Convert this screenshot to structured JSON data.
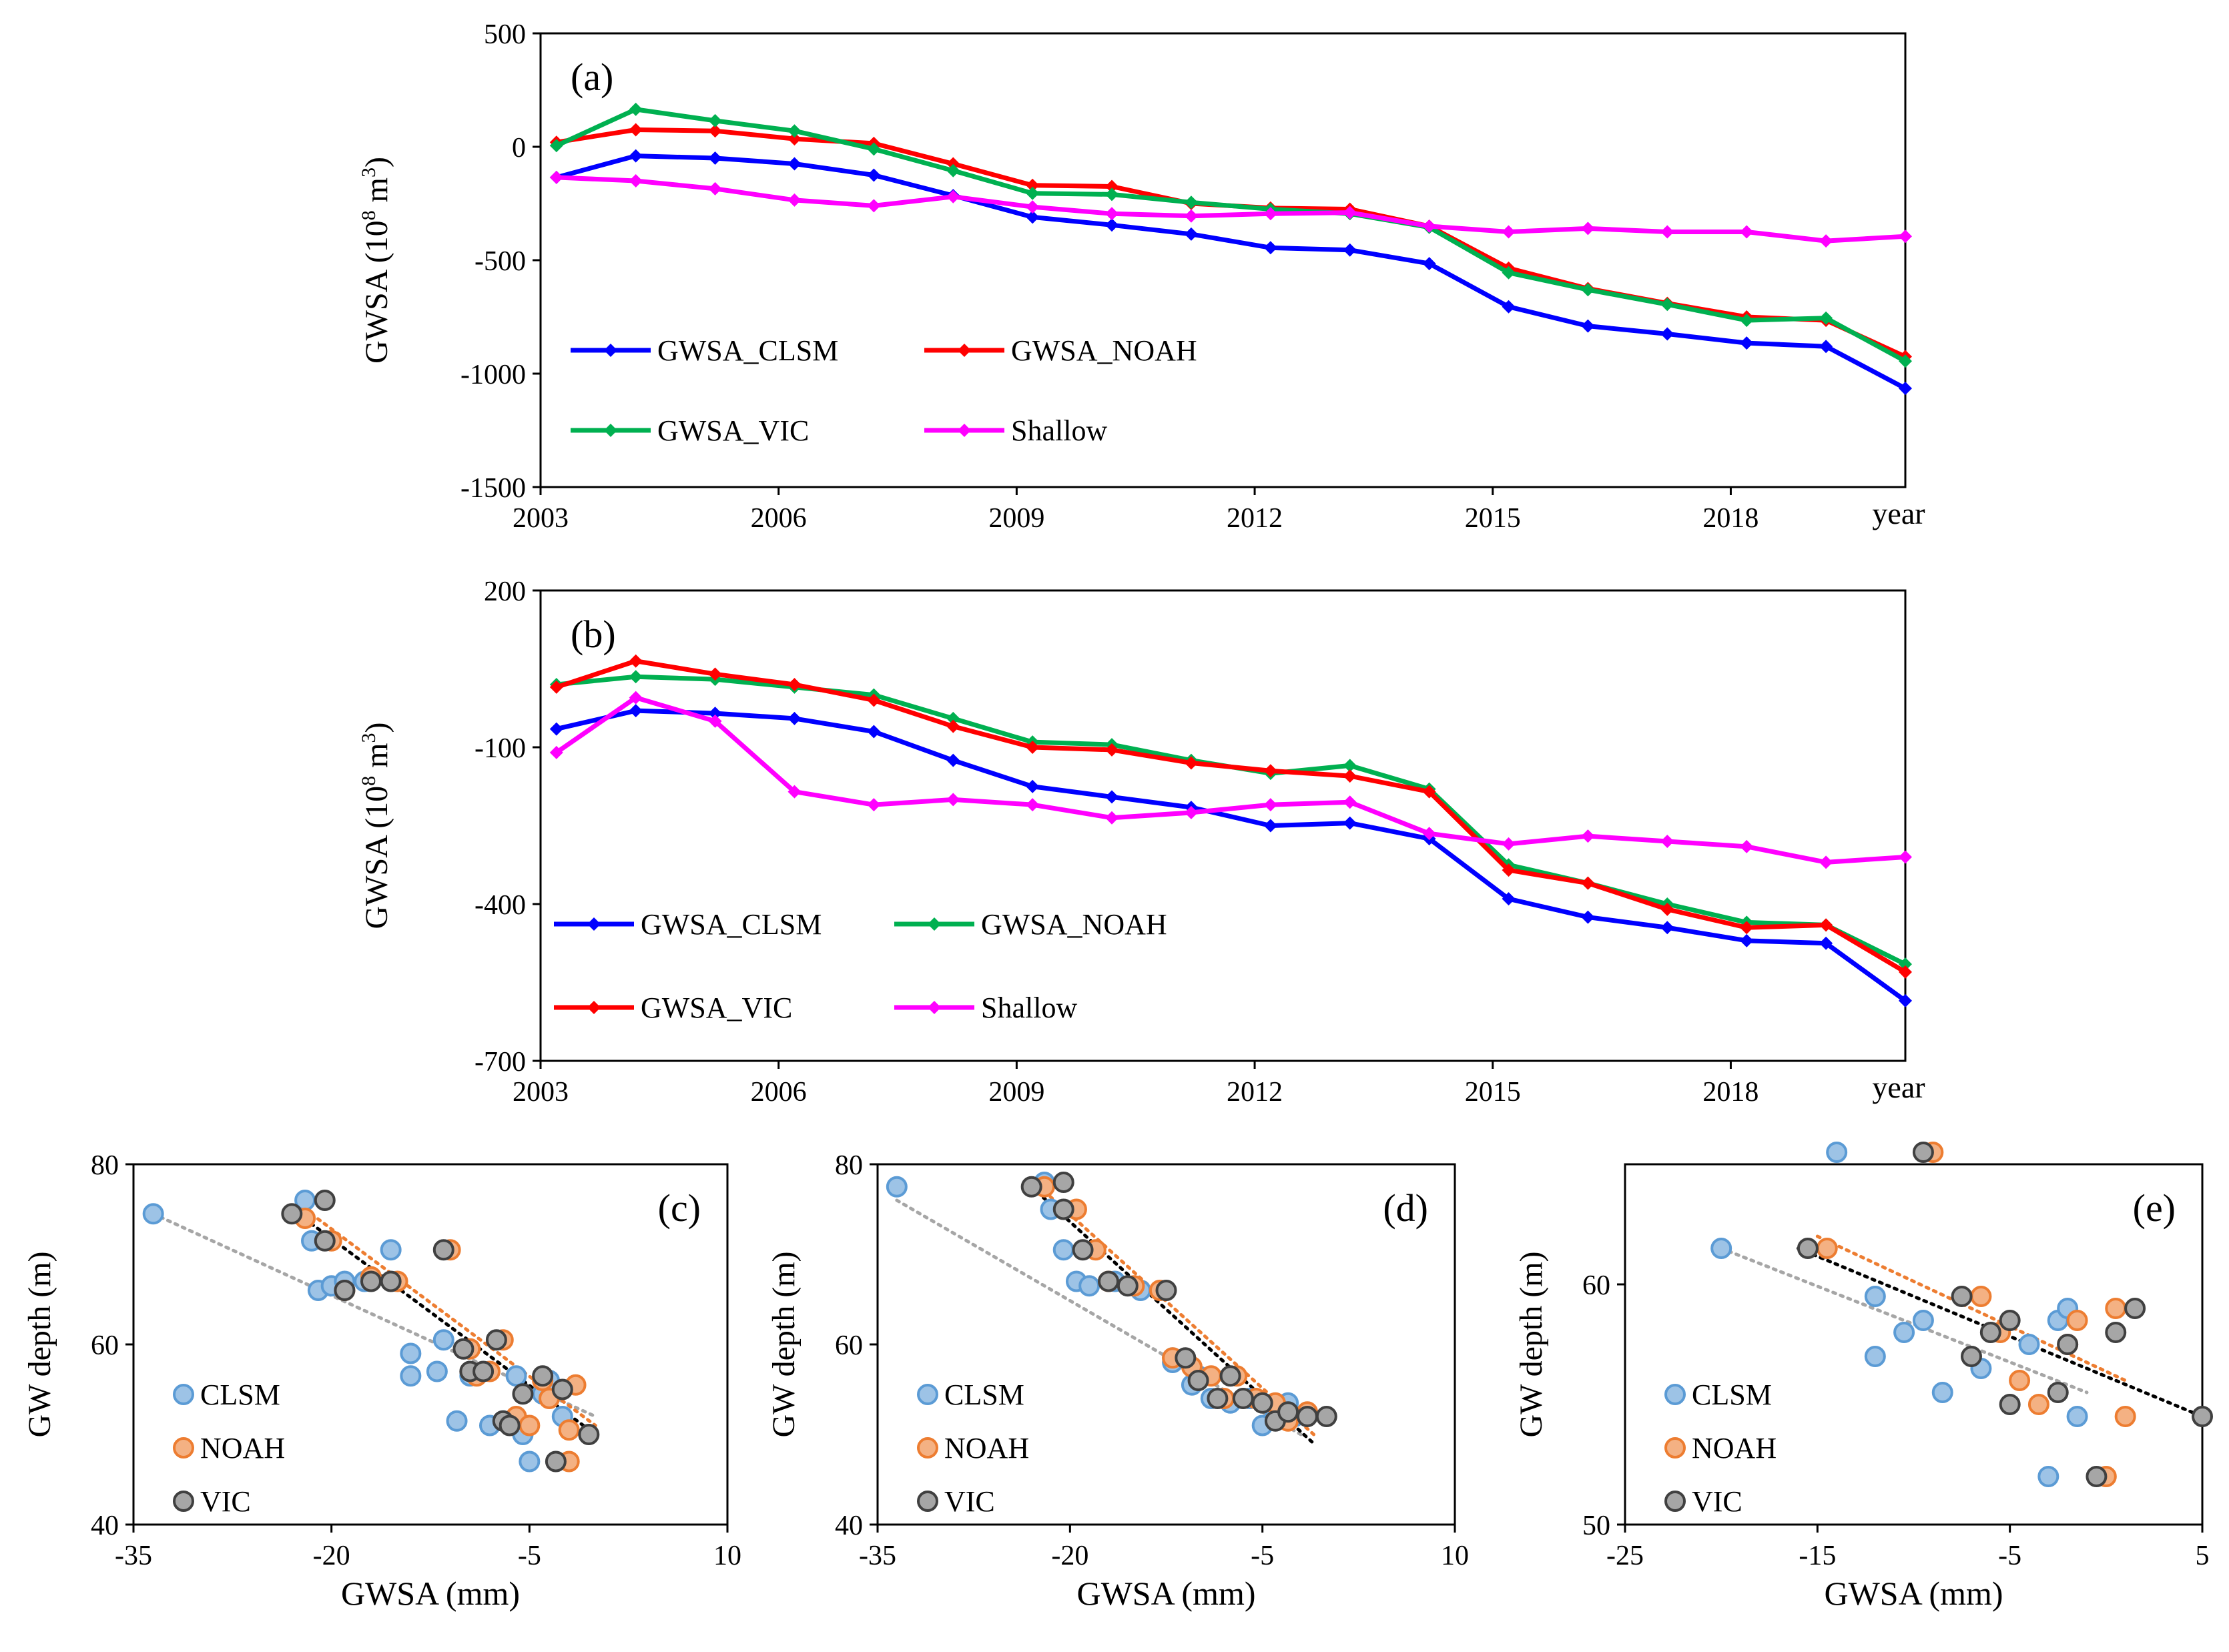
{
  "chart_data": [
    {
      "id": "a",
      "type": "line",
      "panel_label": "(a)",
      "ylabel": "GWSA (10",
      "ylabel_sup": "8",
      "ylabel_unit": " m",
      "ylabel_sup2": "3",
      "ylabel_end": ")",
      "xlabel": "year",
      "ylim": [
        -1500,
        500
      ],
      "yticks": [
        "500",
        "0",
        "-500",
        "-1000",
        "-1500"
      ],
      "xlim": [
        2003,
        2020.2
      ],
      "xticks": [
        "2003",
        "2006",
        "2009",
        "2012",
        "2015",
        "2018"
      ],
      "x": [
        2003.2,
        2004.2,
        2005.2,
        2006.2,
        2007.2,
        2008.2,
        2009.2,
        2010.2,
        2011.2,
        2012.2,
        2013.2,
        2014.2,
        2015.2,
        2016.2,
        2017.2,
        2018.2,
        2019.2,
        2020.2
      ],
      "series": [
        {
          "name": "GWSA_CLSM",
          "color": "#0000ff",
          "values": [
            -135,
            -40,
            -50,
            -75,
            -125,
            -215,
            -310,
            -345,
            -385,
            -445,
            -455,
            -515,
            -705,
            -790,
            -825,
            -865,
            -880,
            -1065
          ]
        },
        {
          "name": "GWSA_NOAH",
          "color": "#ff0000",
          "values": [
            20,
            75,
            70,
            35,
            15,
            -75,
            -170,
            -175,
            -250,
            -270,
            -275,
            -350,
            -535,
            -625,
            -690,
            -750,
            -765,
            -925
          ]
        },
        {
          "name": "GWSA_VIC",
          "color": "#00b050",
          "values": [
            5,
            165,
            115,
            70,
            -10,
            -105,
            -205,
            -210,
            -245,
            -275,
            -295,
            -355,
            -555,
            -630,
            -695,
            -765,
            -755,
            -945
          ]
        },
        {
          "name": "Shallow",
          "color": "#ff00ff",
          "values": [
            -135,
            -150,
            -185,
            -235,
            -260,
            -220,
            -265,
            -295,
            -305,
            -295,
            -290,
            -350,
            -375,
            -360,
            -375,
            -375,
            -415,
            -395
          ]
        }
      ],
      "legend": [
        "GWSA_CLSM",
        "GWSA_NOAH",
        "GWSA_VIC",
        "Shallow"
      ]
    },
    {
      "id": "b",
      "type": "line",
      "panel_label": "(b)",
      "ylabel": "GWSA (10",
      "ylabel_sup": "8",
      "ylabel_unit": " m",
      "ylabel_sup2": "3",
      "ylabel_end": ")",
      "xlabel": "year",
      "ylim": [
        -700,
        200
      ],
      "yticks": [
        "200",
        "-100",
        "-400",
        "-700"
      ],
      "xlim": [
        2003,
        2020.2
      ],
      "xticks": [
        "2003",
        "2006",
        "2009",
        "2012",
        "2015",
        "2018"
      ],
      "x": [
        2003.2,
        2004.2,
        2005.2,
        2006.2,
        2007.2,
        2008.2,
        2009.2,
        2010.2,
        2011.2,
        2012.2,
        2013.2,
        2014.2,
        2015.2,
        2016.2,
        2017.2,
        2018.2,
        2019.2,
        2020.2
      ],
      "series": [
        {
          "name": "GWSA_CLSM",
          "color": "#0000ff",
          "values": [
            -65,
            -30,
            -35,
            -45,
            -70,
            -125,
            -175,
            -195,
            -215,
            -250,
            -245,
            -275,
            -390,
            -425,
            -445,
            -470,
            -475,
            -585
          ]
        },
        {
          "name": "GWSA_NOAH",
          "color": "#00b050",
          "values": [
            20,
            35,
            30,
            15,
            0,
            -45,
            -90,
            -95,
            -125,
            -150,
            -135,
            -180,
            -325,
            -360,
            -400,
            -435,
            -440,
            -515
          ]
        },
        {
          "name": "GWSA_VIC",
          "color": "#ff0000",
          "values": [
            15,
            65,
            40,
            20,
            -10,
            -60,
            -100,
            -105,
            -130,
            -145,
            -155,
            -185,
            -335,
            -360,
            -410,
            -445,
            -440,
            -530
          ]
        },
        {
          "name": "Shallow",
          "color": "#ff00ff",
          "values": [
            -110,
            -5,
            -50,
            -185,
            -210,
            -200,
            -210,
            -235,
            -225,
            -210,
            -205,
            -265,
            -285,
            -270,
            -280,
            -290,
            -320,
            -310
          ]
        }
      ],
      "legend": [
        "GWSA_CLSM",
        "GWSA_NOAH",
        "GWSA_VIC",
        "Shallow"
      ]
    },
    {
      "id": "c",
      "type": "scatter",
      "panel_label": "(c)",
      "ylabel": "GW depth (m)",
      "xlabel": "GWSA (mm)",
      "ylim": [
        40,
        80
      ],
      "yticks": [
        "80",
        "60",
        "40"
      ],
      "xlim": [
        -35,
        10
      ],
      "xticks": [
        "-35",
        "-20",
        "-5",
        "10"
      ],
      "series": [
        {
          "name": "CLSM",
          "color": "#9dc3e6",
          "edge": "#5b9bd5",
          "points": [
            [
              -33.5,
              74.5
            ],
            [
              -22,
              76
            ],
            [
              -21.5,
              71.5
            ],
            [
              -21,
              66
            ],
            [
              -20,
              66.5
            ],
            [
              -19,
              67
            ],
            [
              -17.5,
              67
            ],
            [
              -15.5,
              70.5
            ],
            [
              -14,
              59
            ],
            [
              -14,
              56.5
            ],
            [
              -12,
              57
            ],
            [
              -11.5,
              60.5
            ],
            [
              -10.5,
              51.5
            ],
            [
              -9.5,
              56.5
            ],
            [
              -8,
              51
            ],
            [
              -7,
              51.5
            ],
            [
              -6,
              56.5
            ],
            [
              -5.5,
              50
            ],
            [
              -5,
              47
            ],
            [
              -4,
              54.5
            ],
            [
              -3.5,
              56
            ],
            [
              -2.5,
              52
            ]
          ]
        },
        {
          "name": "NOAH",
          "color": "#f4b183",
          "edge": "#ed7d31",
          "points": [
            [
              -22,
              74
            ],
            [
              -20,
              71.5
            ],
            [
              -19,
              66
            ],
            [
              -17,
              67.5
            ],
            [
              -15,
              67
            ],
            [
              -11,
              70.5
            ],
            [
              -9.5,
              59.5
            ],
            [
              -9,
              56.5
            ],
            [
              -8,
              57
            ],
            [
              -7,
              60.5
            ],
            [
              -6,
              52
            ],
            [
              -5,
              51
            ],
            [
              -4,
              56
            ],
            [
              -3.5,
              54
            ],
            [
              -2,
              50.5
            ],
            [
              -2,
              47
            ],
            [
              -1.5,
              55.5
            ]
          ]
        },
        {
          "name": "VIC",
          "color": "#a6a6a6",
          "edge": "#404040",
          "points": [
            [
              -23,
              74.5
            ],
            [
              -20.5,
              76
            ],
            [
              -20.5,
              71.5
            ],
            [
              -19,
              66
            ],
            [
              -17,
              67
            ],
            [
              -15.5,
              67
            ],
            [
              -11.5,
              70.5
            ],
            [
              -10,
              59.5
            ],
            [
              -9.5,
              57
            ],
            [
              -8.5,
              57
            ],
            [
              -7.5,
              60.5
            ],
            [
              -7,
              51.5
            ],
            [
              -6.5,
              51
            ],
            [
              -5.5,
              54.5
            ],
            [
              -4,
              56.5
            ],
            [
              -3,
              47
            ],
            [
              -2.5,
              55
            ],
            [
              -0.5,
              50
            ]
          ]
        }
      ],
      "trendlines": [
        {
          "color": "#a6a6a6",
          "from": [
            -33.5,
            74.5
          ],
          "to": [
            0,
            52
          ]
        },
        {
          "color": "#ed7d31",
          "from": [
            -22,
            75
          ],
          "to": [
            0,
            51
          ]
        },
        {
          "color": "#000000",
          "from": [
            -23,
            75
          ],
          "to": [
            0,
            50
          ]
        }
      ],
      "legend": [
        "CLSM",
        "NOAH",
        "VIC"
      ]
    },
    {
      "id": "d",
      "type": "scatter",
      "panel_label": "(d)",
      "ylabel": "GW depth (m)",
      "xlabel": "GWSA (mm)",
      "ylim": [
        40,
        80
      ],
      "yticks": [
        "80",
        "60",
        "40"
      ],
      "xlim": [
        -35,
        10
      ],
      "xticks": [
        "-35",
        "-20",
        "-5",
        "10"
      ],
      "series": [
        {
          "name": "CLSM",
          "color": "#9dc3e6",
          "edge": "#5b9bd5",
          "points": [
            [
              -33.5,
              77.5
            ],
            [
              -22,
              78
            ],
            [
              -21.5,
              75
            ],
            [
              -20.5,
              70.5
            ],
            [
              -19.5,
              67
            ],
            [
              -18.5,
              66.5
            ],
            [
              -16.5,
              67
            ],
            [
              -14.5,
              66
            ],
            [
              -12,
              58.5
            ],
            [
              -12,
              58
            ],
            [
              -10.5,
              55.5
            ],
            [
              -10,
              56.5
            ],
            [
              -9,
              54
            ],
            [
              -7.5,
              53.5
            ],
            [
              -6,
              54
            ],
            [
              -5,
              51
            ],
            [
              -4,
              52.5
            ],
            [
              -3,
              53.5
            ],
            [
              -2.5,
              52
            ]
          ]
        },
        {
          "name": "NOAH",
          "color": "#f4b183",
          "edge": "#ed7d31",
          "points": [
            [
              -22,
              77.5
            ],
            [
              -19.5,
              75
            ],
            [
              -18,
              70.5
            ],
            [
              -17,
              67
            ],
            [
              -15,
              66.5
            ],
            [
              -13,
              66
            ],
            [
              -12,
              58.5
            ],
            [
              -10.5,
              57.5
            ],
            [
              -9,
              56.5
            ],
            [
              -8,
              54
            ],
            [
              -7,
              56.5
            ],
            [
              -5.5,
              54
            ],
            [
              -4,
              53.5
            ],
            [
              -3,
              51.5
            ],
            [
              -1.5,
              52.5
            ]
          ]
        },
        {
          "name": "VIC",
          "color": "#a6a6a6",
          "edge": "#404040",
          "points": [
            [
              -23,
              77.5
            ],
            [
              -20.5,
              78
            ],
            [
              -20.5,
              75
            ],
            [
              -19,
              70.5
            ],
            [
              -17,
              67
            ],
            [
              -15.5,
              66.5
            ],
            [
              -12.5,
              66
            ],
            [
              -11,
              58.5
            ],
            [
              -10,
              56
            ],
            [
              -8.5,
              54
            ],
            [
              -7.5,
              56.5
            ],
            [
              -6.5,
              54
            ],
            [
              -5,
              53.5
            ],
            [
              -4,
              51.5
            ],
            [
              -3,
              52.5
            ],
            [
              -1.5,
              52
            ],
            [
              0,
              52
            ]
          ]
        }
      ],
      "trendlines": [
        {
          "color": "#a6a6a6",
          "from": [
            -33.5,
            76
          ],
          "to": [
            -2,
            50
          ]
        },
        {
          "color": "#ed7d31",
          "from": [
            -22,
            77
          ],
          "to": [
            -1,
            50
          ]
        },
        {
          "color": "#000000",
          "from": [
            -23,
            77.5
          ],
          "to": [
            -1,
            49
          ]
        }
      ],
      "legend": [
        "CLSM",
        "NOAH",
        "VIC"
      ]
    },
    {
      "id": "e",
      "type": "scatter",
      "panel_label": "(e)",
      "ylabel": "GW depth (m)",
      "xlabel": "GWSA (mm)",
      "ylim": [
        50,
        65
      ],
      "yticks": [
        "60",
        "50"
      ],
      "xlim": [
        -25,
        5
      ],
      "xticks": [
        "-25",
        "-15",
        "-5",
        "5"
      ],
      "series": [
        {
          "name": "CLSM",
          "color": "#9dc3e6",
          "edge": "#5b9bd5",
          "points": [
            [
              -20,
              61.5
            ],
            [
              -14,
              65.5
            ],
            [
              -12,
              59.5
            ],
            [
              -12,
              57
            ],
            [
              -10.5,
              58
            ],
            [
              -9.5,
              58.5
            ],
            [
              -8.5,
              55.5
            ],
            [
              -6.5,
              56.5
            ],
            [
              -4,
              57.5
            ],
            [
              -3,
              52
            ],
            [
              -2.5,
              58.5
            ],
            [
              -2,
              59
            ],
            [
              -1.5,
              54.5
            ]
          ]
        },
        {
          "name": "NOAH",
          "color": "#f4b183",
          "edge": "#ed7d31",
          "points": [
            [
              -14.5,
              61.5
            ],
            [
              -9,
              65.5
            ],
            [
              -6.5,
              59.5
            ],
            [
              -5.5,
              58
            ],
            [
              -4.5,
              56
            ],
            [
              -3.5,
              55
            ],
            [
              -2,
              57.5
            ],
            [
              -1.5,
              58.5
            ],
            [
              0,
              52
            ],
            [
              0.5,
              59
            ],
            [
              1,
              54.5
            ]
          ]
        },
        {
          "name": "VIC",
          "color": "#a6a6a6",
          "edge": "#404040",
          "points": [
            [
              -15.5,
              61.5
            ],
            [
              -9.5,
              65.5
            ],
            [
              -7.5,
              59.5
            ],
            [
              -7,
              57
            ],
            [
              -6,
              58
            ],
            [
              -5,
              58.5
            ],
            [
              -5,
              55
            ],
            [
              -2.5,
              55.5
            ],
            [
              -2,
              57.5
            ],
            [
              -0.5,
              52
            ],
            [
              0.5,
              58
            ],
            [
              1.5,
              59
            ],
            [
              5,
              54.5
            ]
          ]
        }
      ],
      "trendlines": [
        {
          "color": "#a6a6a6",
          "from": [
            -20,
            61.5
          ],
          "to": [
            -1,
            55.5
          ]
        },
        {
          "color": "#ed7d31",
          "from": [
            -15,
            62
          ],
          "to": [
            1,
            56
          ]
        },
        {
          "color": "#000000",
          "from": [
            -16,
            61.5
          ],
          "to": [
            5,
            54.5
          ]
        }
      ],
      "legend": [
        "CLSM",
        "NOAH",
        "VIC"
      ]
    }
  ]
}
